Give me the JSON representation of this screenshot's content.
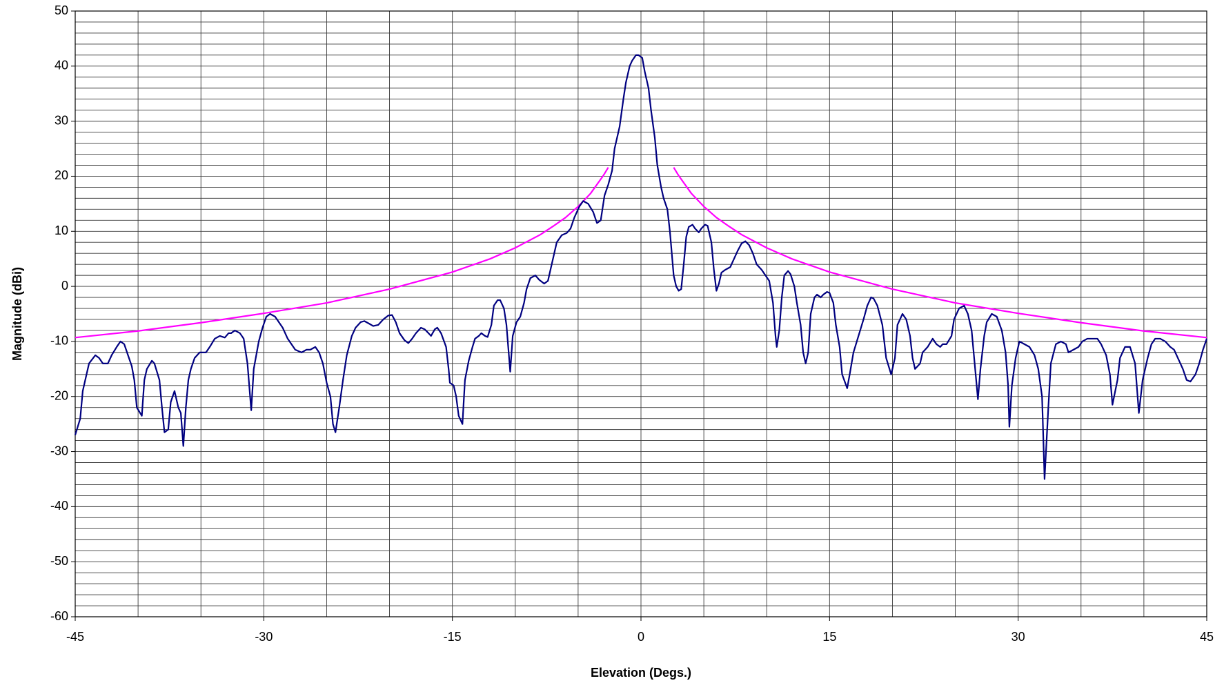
{
  "chart_data": {
    "type": "line",
    "x_label": "Elevation (Degs.)",
    "y_label": "Magnitude (dBi)",
    "xlim": [
      -45,
      45
    ],
    "xticks": [
      -45,
      -30,
      -15,
      0,
      15,
      30,
      45
    ],
    "xgrid": [
      -45,
      -40,
      -35,
      -30,
      -25,
      -20,
      -15,
      -10,
      -5,
      0,
      5,
      10,
      15,
      20,
      25,
      30,
      35,
      40,
      45
    ],
    "ylim": [
      -60,
      50
    ],
    "yticks": [
      -60,
      -50,
      -40,
      -30,
      -20,
      -10,
      0,
      10,
      20,
      30,
      40,
      50
    ],
    "ygrid": [
      -60,
      -58,
      -56,
      -54,
      -52,
      -50,
      -48,
      -46,
      -44,
      -42,
      -40,
      -38,
      -36,
      -34,
      -32,
      -30,
      -28,
      -26,
      -24,
      -22,
      -20,
      -18,
      -16,
      -14,
      -12,
      -10,
      -8,
      -6,
      -4,
      -2,
      0,
      2,
      4,
      6,
      8,
      10,
      12,
      14,
      16,
      18,
      20,
      22,
      24,
      26,
      28,
      30,
      32,
      34,
      36,
      38,
      40,
      42,
      44,
      46,
      48,
      50
    ],
    "grid": true,
    "series": [
      {
        "color": "#000080",
        "x": [
          -45.0,
          -44.6,
          -44.4,
          -44.1,
          -43.9,
          -43.4,
          -43.1,
          -42.8,
          -42.4,
          -42.1,
          -41.7,
          -41.4,
          -41.1,
          -40.8,
          -40.5,
          -40.3,
          -40.1,
          -39.7,
          -39.5,
          -39.3,
          -38.9,
          -38.7,
          -38.3,
          -38.1,
          -37.9,
          -37.6,
          -37.4,
          -37.1,
          -36.8,
          -36.6,
          -36.4,
          -36.2,
          -36.0,
          -35.8,
          -35.5,
          -35.1,
          -34.6,
          -34.3,
          -33.9,
          -33.5,
          -33.1,
          -32.8,
          -32.6,
          -32.3,
          -31.9,
          -31.6,
          -31.3,
          -31.0,
          -30.8,
          -30.4,
          -30.1,
          -29.8,
          -29.5,
          -29.1,
          -28.8,
          -28.5,
          -28.1,
          -27.8,
          -27.5,
          -27.0,
          -26.6,
          -26.3,
          -25.9,
          -25.6,
          -25.3,
          -25.0,
          -24.7,
          -24.5,
          -24.3,
          -24.0,
          -23.7,
          -23.4,
          -23.0,
          -22.7,
          -22.3,
          -22.0,
          -21.6,
          -21.3,
          -20.9,
          -20.5,
          -20.1,
          -19.8,
          -19.5,
          -19.2,
          -18.8,
          -18.5,
          -18.2,
          -17.9,
          -17.5,
          -17.2,
          -16.9,
          -16.7,
          -16.4,
          -16.2,
          -15.9,
          -15.5,
          -15.3,
          -15.2,
          -14.9,
          -14.7,
          -14.5,
          -14.2,
          -14.0,
          -13.7,
          -13.4,
          -13.2,
          -12.9,
          -12.7,
          -12.4,
          -12.2,
          -11.9,
          -11.7,
          -11.4,
          -11.2,
          -10.9,
          -10.7,
          -10.4,
          -10.2,
          -9.9,
          -9.6,
          -9.3,
          -9.1,
          -8.8,
          -8.4,
          -8.1,
          -7.7,
          -7.4,
          -7.2,
          -6.9,
          -6.7,
          -6.3,
          -5.9,
          -5.6,
          -5.3,
          -4.9,
          -4.6,
          -4.2,
          -3.8,
          -3.5,
          -3.2,
          -2.9,
          -2.6,
          -2.3,
          -2.1,
          -1.7,
          -1.4,
          -1.2,
          -0.9,
          -0.7,
          -0.4,
          -0.2,
          0.1,
          0.3,
          0.6,
          0.8,
          1.1,
          1.3,
          1.6,
          1.8,
          2.1,
          2.3,
          2.6,
          2.8,
          3.0,
          3.2,
          3.4,
          3.6,
          3.8,
          4.1,
          4.3,
          4.6,
          4.8,
          5.1,
          5.3,
          5.6,
          5.8,
          6.0,
          6.2,
          6.4,
          6.7,
          7.1,
          7.4,
          7.7,
          8.0,
          8.3,
          8.6,
          8.9,
          9.2,
          9.6,
          9.9,
          10.2,
          10.5,
          10.7,
          10.8,
          11.0,
          11.2,
          11.4,
          11.7,
          11.9,
          12.2,
          12.4,
          12.7,
          12.9,
          13.1,
          13.3,
          13.5,
          13.8,
          14.0,
          14.3,
          14.5,
          14.8,
          15.0,
          15.3,
          15.5,
          15.8,
          16.0,
          16.4,
          16.6,
          16.9,
          17.3,
          17.7,
          18.0,
          18.3,
          18.5,
          18.8,
          19.2,
          19.5,
          19.9,
          20.2,
          20.4,
          20.8,
          21.1,
          21.4,
          21.6,
          21.8,
          22.2,
          22.4,
          22.8,
          23.2,
          23.5,
          23.8,
          24.0,
          24.3,
          24.7,
          24.9,
          25.3,
          25.7,
          26.0,
          26.3,
          26.5,
          26.8,
          27.0,
          27.3,
          27.5,
          27.9,
          28.3,
          28.7,
          29.0,
          29.2,
          29.3,
          29.5,
          29.8,
          30.1,
          30.5,
          30.9,
          31.3,
          31.6,
          31.9,
          32.1,
          32.4,
          32.6,
          33.0,
          33.4,
          33.8,
          34.0,
          34.4,
          34.8,
          35.1,
          35.5,
          35.9,
          36.3,
          36.6,
          37.0,
          37.3,
          37.5,
          37.9,
          38.1,
          38.5,
          38.9,
          39.3,
          39.5,
          39.6,
          39.9,
          40.3,
          40.6,
          40.9,
          41.3,
          41.7,
          42.1,
          42.4,
          42.7,
          43.1,
          43.4,
          43.7,
          44.1,
          44.4,
          44.7,
          45.0
        ],
        "values": [
          -27,
          -24,
          -19,
          -16,
          -14,
          -12.5,
          -13,
          -14,
          -14,
          -12.5,
          -11,
          -10,
          -10.5,
          -12.5,
          -14.5,
          -17,
          -22,
          -23.5,
          -17,
          -15,
          -13.5,
          -14,
          -17,
          -22,
          -26.5,
          -26,
          -21,
          -19,
          -22,
          -23,
          -29,
          -22,
          -17,
          -15,
          -13,
          -12,
          -12,
          -11,
          -9.5,
          -9,
          -9.3,
          -8.5,
          -8.5,
          -8,
          -8.5,
          -9.5,
          -14,
          -22.5,
          -15,
          -10,
          -7.5,
          -5.5,
          -5,
          -5.5,
          -6.5,
          -7.5,
          -9.5,
          -10.5,
          -11.5,
          -12,
          -11.5,
          -11.5,
          -11,
          -12,
          -14,
          -17.5,
          -20,
          -25,
          -26.5,
          -22,
          -17,
          -12.5,
          -9,
          -7.5,
          -6.5,
          -6.3,
          -6.8,
          -7.2,
          -7,
          -6,
          -5.3,
          -5.2,
          -6.5,
          -8.5,
          -9.8,
          -10.3,
          -9.5,
          -8.5,
          -7.5,
          -7.8,
          -8.5,
          -9,
          -7.8,
          -7.5,
          -8.5,
          -11,
          -15,
          -17.5,
          -18,
          -20,
          -23.5,
          -25,
          -17,
          -13.5,
          -11,
          -9.5,
          -9,
          -8.5,
          -9,
          -9.2,
          -7,
          -3.5,
          -2.5,
          -2.5,
          -4,
          -7,
          -15.5,
          -9,
          -6.5,
          -5.5,
          -3,
          -0.5,
          1.5,
          2,
          1.2,
          0.5,
          1,
          3,
          6,
          8,
          9.3,
          9.7,
          10.5,
          12.5,
          14.5,
          15.5,
          15,
          13.5,
          11.5,
          12,
          16.5,
          18.5,
          21,
          25,
          29,
          34,
          37,
          40,
          41,
          42,
          42,
          41.5,
          39,
          36,
          32,
          27,
          22,
          18,
          16,
          14,
          10,
          2,
          0,
          -0.8,
          -0.5,
          4,
          9,
          10.8,
          11.2,
          10.5,
          9.8,
          10.5,
          11.2,
          11,
          8,
          3,
          -0.8,
          0.5,
          2.5,
          3,
          3.5,
          5,
          6.5,
          7.8,
          8.2,
          7.5,
          6,
          4,
          3,
          2,
          1,
          -3,
          -9,
          -11,
          -8,
          -2,
          2,
          2.8,
          2.2,
          0,
          -3,
          -7,
          -12,
          -14,
          -12,
          -5,
          -2,
          -1.5,
          -2,
          -1.5,
          -1,
          -1.2,
          -3,
          -7,
          -11,
          -16,
          -18.5,
          -16,
          -12,
          -9,
          -6,
          -3.5,
          -2,
          -2.2,
          -3.5,
          -7,
          -13,
          -16,
          -13,
          -7,
          -5,
          -6,
          -9,
          -13,
          -15,
          -14,
          -12,
          -11,
          -9.5,
          -10.5,
          -11,
          -10.5,
          -10.5,
          -9,
          -6,
          -4,
          -3.5,
          -5,
          -8,
          -13,
          -20.5,
          -15,
          -9,
          -6.5,
          -5,
          -5.5,
          -8,
          -12,
          -18,
          -25.5,
          -18,
          -13,
          -10,
          -10.5,
          -11,
          -12.5,
          -15,
          -20,
          -35,
          -22,
          -14,
          -10.5,
          -10,
          -10.5,
          -12,
          -11.5,
          -11,
          -10,
          -9.5,
          -9.5,
          -9.5,
          -10.5,
          -12.5,
          -16,
          -21.5,
          -17,
          -13,
          -11,
          -11,
          -14,
          -20,
          -23,
          -17,
          -13,
          -10.5,
          -9.5,
          -9.5,
          -10,
          -11,
          -11.5,
          -13,
          -15,
          -17,
          -17.3,
          -16,
          -14,
          -11.5,
          -9.5
        ]
      },
      {
        "color": "#ff00ff",
        "x": [
          -45,
          -40,
          -35,
          -30,
          -25,
          -20,
          -15,
          -12,
          -10,
          -8,
          -7,
          -6,
          -5,
          -4,
          -3,
          -2.6,
          0,
          2.6,
          3,
          4,
          5,
          6,
          7,
          8,
          10,
          12,
          15,
          20,
          25,
          30,
          35,
          40,
          45
        ],
        "values": [
          -9.3,
          -8.1,
          -6.6,
          -4.9,
          -3.0,
          -0.5,
          2.6,
          5.0,
          7.0,
          9.4,
          10.9,
          12.5,
          14.5,
          16.9,
          20.1,
          21.6,
          null,
          21.6,
          20.1,
          16.9,
          14.5,
          12.5,
          10.9,
          9.4,
          7.0,
          5.0,
          2.6,
          -0.5,
          -3.0,
          -4.9,
          -6.6,
          -8.1,
          -9.3
        ]
      }
    ]
  }
}
